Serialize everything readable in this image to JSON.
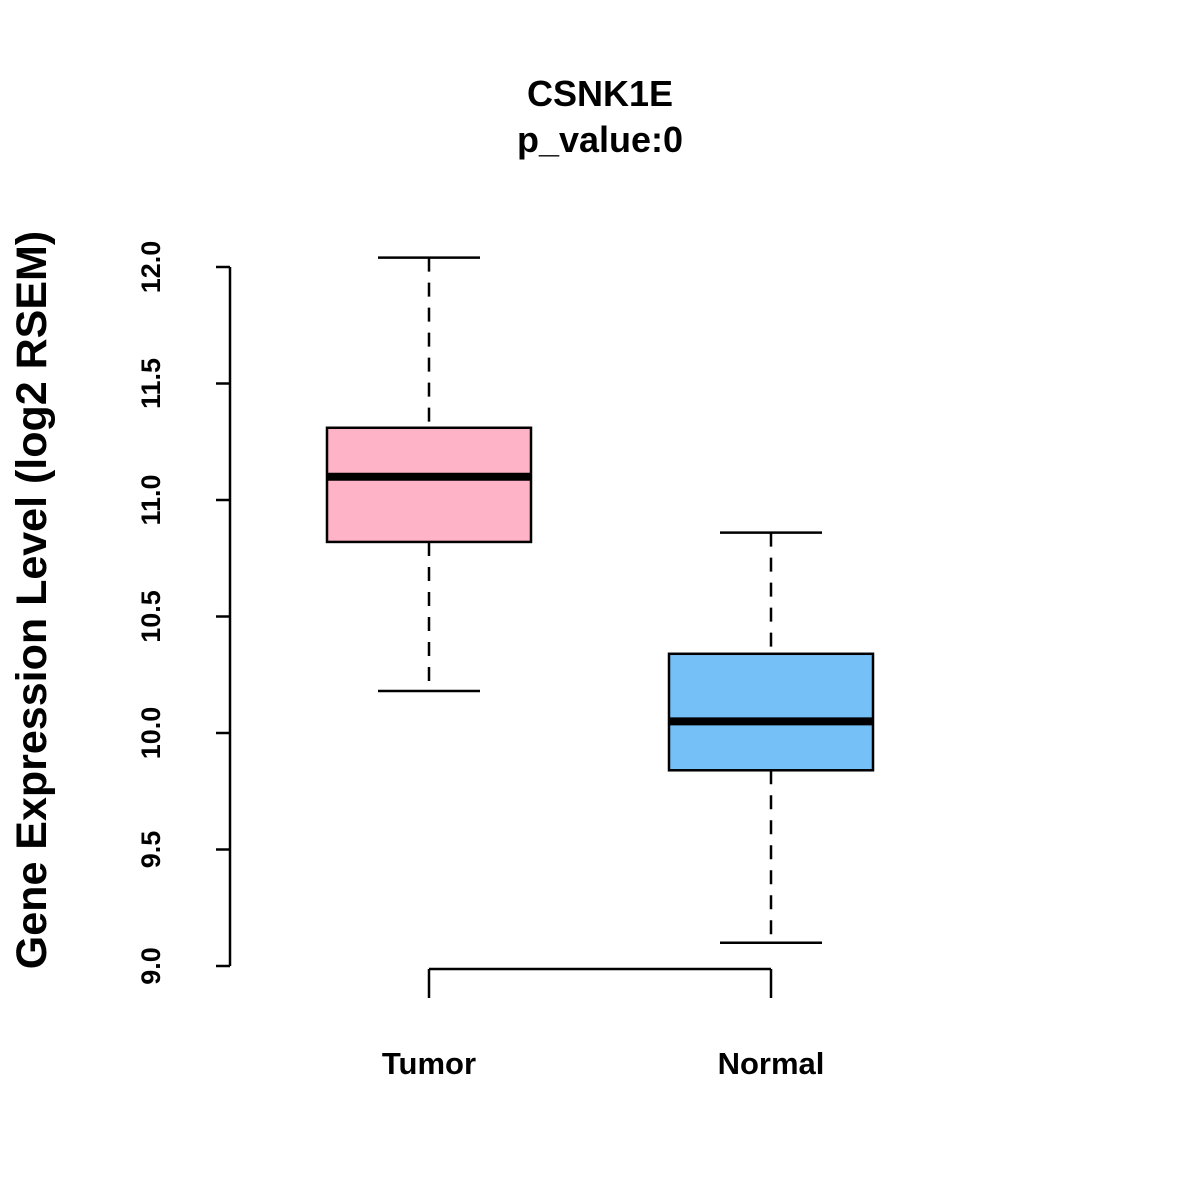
{
  "chart_data": {
    "type": "boxplot",
    "title": "CSNK1E",
    "subtitle": "p_value:0",
    "xlabel": "",
    "ylabel": "Gene Expression Level (log2 RSEM)",
    "ylim": [
      9.0,
      12.0
    ],
    "yticks": [
      "9.0",
      "9.5",
      "10.0",
      "10.5",
      "11.0",
      "11.5",
      "12.0"
    ],
    "categories": [
      "Tumor",
      "Normal"
    ],
    "groups": [
      {
        "name": "Tumor",
        "min": 10.18,
        "q1": 10.82,
        "median": 11.1,
        "q3": 11.31,
        "max": 12.04,
        "color": "#FFB3C6"
      },
      {
        "name": "Normal",
        "min": 9.1,
        "q1": 9.84,
        "median": 10.05,
        "q3": 10.34,
        "max": 10.86,
        "color": "#76C0F8"
      }
    ],
    "comparison_bracket": {
      "from": "Tumor",
      "to": "Normal",
      "label": ""
    },
    "grid": false,
    "legend": "none"
  }
}
